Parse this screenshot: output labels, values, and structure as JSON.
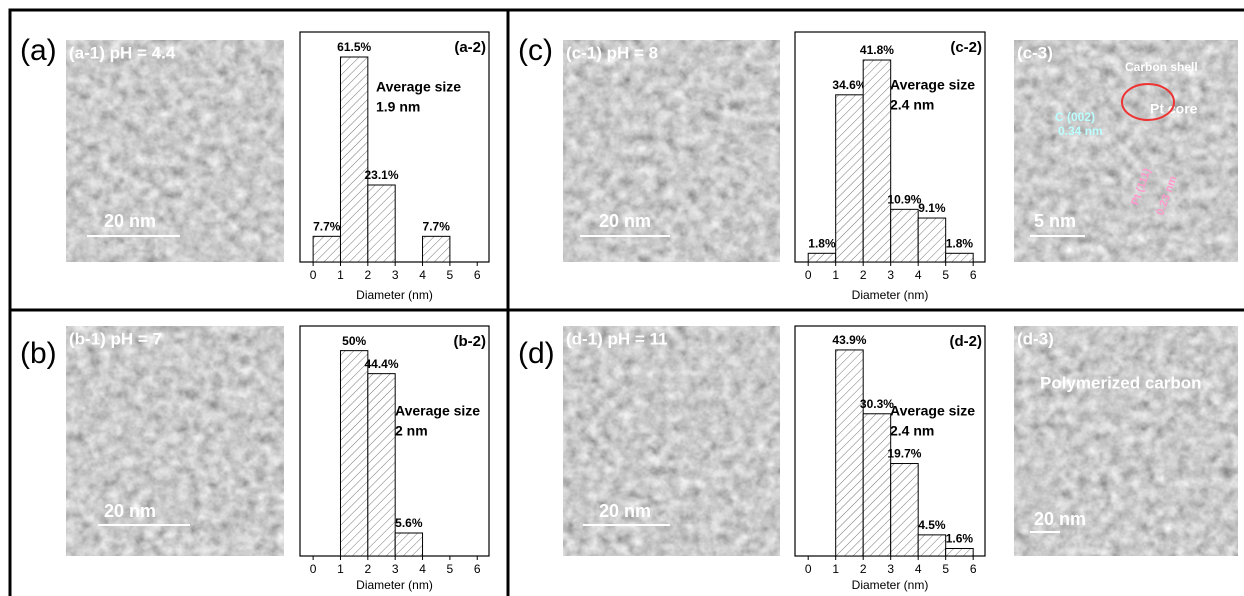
{
  "panel_labels": [
    "(a)",
    "(b)",
    "(c)",
    "(d)"
  ],
  "images": [
    {
      "title": "(a-1) pH = 4.4",
      "scale": "20 nm"
    },
    {
      "title": "(b-1) pH = 7",
      "scale": "20 nm"
    },
    {
      "title": "(c-1) pH = 8",
      "scale": "20 nm"
    },
    {
      "title": "(c-3)",
      "scale": "5 nm",
      "annotations": [
        "Carbon shell",
        "Pt core",
        "C (002)",
        "0.34 nm",
        "Pt (111)",
        "0.23 nm"
      ]
    },
    {
      "title": "(d-1) pH = 11",
      "scale": "20 nm"
    },
    {
      "title": "(d-3)",
      "scale": "20 nm",
      "annotations": [
        "Polymerized carbon"
      ]
    }
  ],
  "chart_data": [
    {
      "type": "histogram",
      "title": "(a-2)",
      "annotation": [
        "Average size",
        "1.9 nm"
      ],
      "xlabel": "Diameter (nm)",
      "bins": [
        0,
        1,
        2,
        3,
        4,
        5,
        6
      ],
      "values": [
        7.7,
        61.5,
        23.1,
        0,
        7.7,
        0
      ],
      "value_labels": [
        "7.7%",
        "61.5%",
        "23.1%",
        null,
        "7.7%",
        null
      ],
      "xlim": [
        -0.48,
        6.43
      ],
      "xticks": [
        0,
        1,
        2,
        3,
        4,
        5,
        6
      ],
      "ylim": [
        0,
        69
      ],
      "color": "#555555"
    },
    {
      "type": "histogram",
      "title": "(b-2)",
      "annotation": [
        "Average size",
        "2 nm"
      ],
      "xlabel": "Diameter (nm)",
      "bins": [
        0,
        1,
        2,
        3,
        4,
        5,
        6
      ],
      "values": [
        0,
        50,
        44.4,
        5.6,
        0,
        0
      ],
      "value_labels": [
        null,
        "50%",
        "44.4%",
        "5.6%",
        null,
        null
      ],
      "xlim": [
        -0.48,
        6.43
      ],
      "xticks": [
        0,
        1,
        2,
        3,
        4,
        5,
        6
      ],
      "ylim": [
        0,
        56
      ],
      "color": "#555555"
    },
    {
      "type": "histogram",
      "title": "(c-2)",
      "annotation": [
        "Average size",
        "2.4 nm"
      ],
      "xlabel": "Diameter (nm)",
      "bins": [
        0,
        1,
        2,
        3,
        4,
        5,
        6
      ],
      "values": [
        1.8,
        34.6,
        41.8,
        10.9,
        9.1,
        1.8
      ],
      "value_labels": [
        "1.8%",
        "34.6%",
        "41.8%",
        "10.9%",
        "9.1%",
        "1.8%"
      ],
      "xlim": [
        -0.48,
        6.43
      ],
      "xticks": [
        0,
        1,
        2,
        3,
        4,
        5,
        6
      ],
      "ylim": [
        0,
        47.6
      ],
      "color": "#555555"
    },
    {
      "type": "histogram",
      "title": "(d-2)",
      "annotation": [
        "Average size",
        "2.4 nm"
      ],
      "xlabel": "Diameter (nm)",
      "bins": [
        0,
        1,
        2,
        3,
        4,
        5,
        6
      ],
      "values": [
        0,
        43.9,
        30.3,
        19.7,
        4.5,
        1.6
      ],
      "value_labels": [
        null,
        "43.9%",
        "30.3%",
        "19.7%",
        "4.5%",
        "1.6%"
      ],
      "xlim": [
        -0.48,
        6.43
      ],
      "xticks": [
        0,
        1,
        2,
        3,
        4,
        5,
        6
      ],
      "ylim": [
        0,
        49
      ],
      "color": "#555555"
    }
  ]
}
